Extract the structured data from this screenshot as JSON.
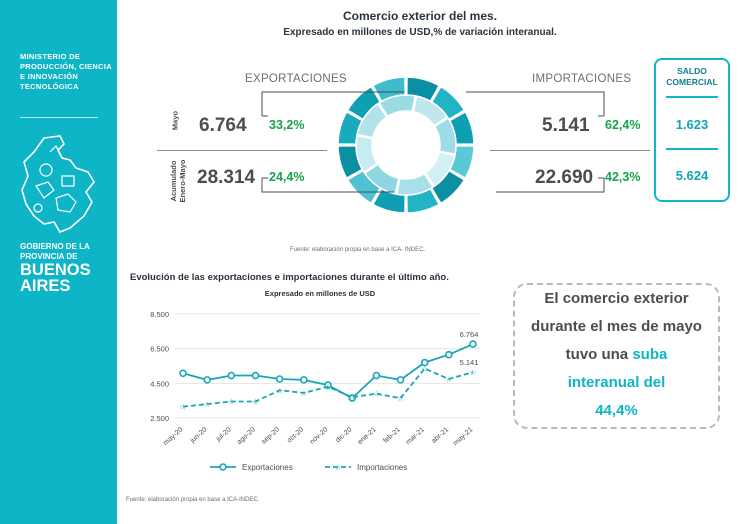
{
  "sidebar": {
    "ministry": "MINISTERIO DE PRODUCCIÓN, CIENCIA E INNOVACIÓN TECNOLÓGICA",
    "gov_line": "GOBIERNO DE LA PROVINCIA DE",
    "ba_line1": "BUENOS",
    "ba_line2": "AIRES"
  },
  "header": {
    "title": "Comercio exterior del mes.",
    "subtitle": "Expresado en millones de USD,% de variación interanual."
  },
  "exports": {
    "label": "EXPORTACIONES",
    "may_value": "6.764",
    "may_pct": "33,2%",
    "acc_value": "28.314",
    "acc_pct": "24,4%"
  },
  "imports": {
    "label": "IMPORTACIONES",
    "may_value": "5.141",
    "may_pct": "62,4%",
    "acc_value": "22.690",
    "acc_pct": "42,3%"
  },
  "row_labels": {
    "may": "Mayo",
    "acc_line1": "Acumulado",
    "acc_line2": "Enero-Mayo"
  },
  "saldo": {
    "title_line1": "SALDO",
    "title_line2": "COMERCIAL",
    "may": "1.623",
    "acc": "5.624"
  },
  "source_top": "Fuente: elaboración propia en base a ICA- INDEC.",
  "source_bottom": "Fuente: elaboración propia en base a ICA-INDEC.",
  "message": {
    "line1": "El comercio exterior",
    "line2": "durante el mes de mayo",
    "line3_pre": "tuvo una ",
    "line3_accent": "suba",
    "line4": "interanual del",
    "line5": "44,4%"
  },
  "colors": {
    "teal": "#0eb5c7",
    "dark_teal": "#0b8fa3",
    "light_teal": "#7fd3de",
    "green_pct": "#17a34a"
  },
  "chart_data": {
    "type": "line",
    "title": "Evolución de las exportaciones e importaciones durante el último año.",
    "subtitle": "Expresado en millones de USD",
    "categories": [
      "may-20",
      "jun-20",
      "jul-20",
      "ago-20",
      "sep-20",
      "oct-20",
      "nov-20",
      "dic-20",
      "ene-21",
      "feb-21",
      "mar-21",
      "abr-21",
      "may-21"
    ],
    "series": [
      {
        "name": "Exportaciones",
        "style": "solid",
        "color": "#1aa6b7",
        "values": [
          5080,
          4700,
          4950,
          4950,
          4750,
          4700,
          4400,
          3650,
          4950,
          4700,
          5700,
          6150,
          6764
        ]
      },
      {
        "name": "Importaciones",
        "style": "dashed",
        "color": "#1aa6b7",
        "values": [
          3150,
          3300,
          3450,
          3450,
          4100,
          3950,
          4300,
          3700,
          3900,
          3650,
          5350,
          4750,
          5141
        ]
      }
    ],
    "end_labels": [
      "6.764",
      "5.141"
    ],
    "yticks": [
      "8.500",
      "6.500",
      "4.500",
      "2.500"
    ],
    "ytick_values": [
      8500,
      6500,
      4500,
      2500
    ],
    "ylim": [
      2500,
      8500
    ],
    "grid": true,
    "legend_position": "bottom"
  }
}
